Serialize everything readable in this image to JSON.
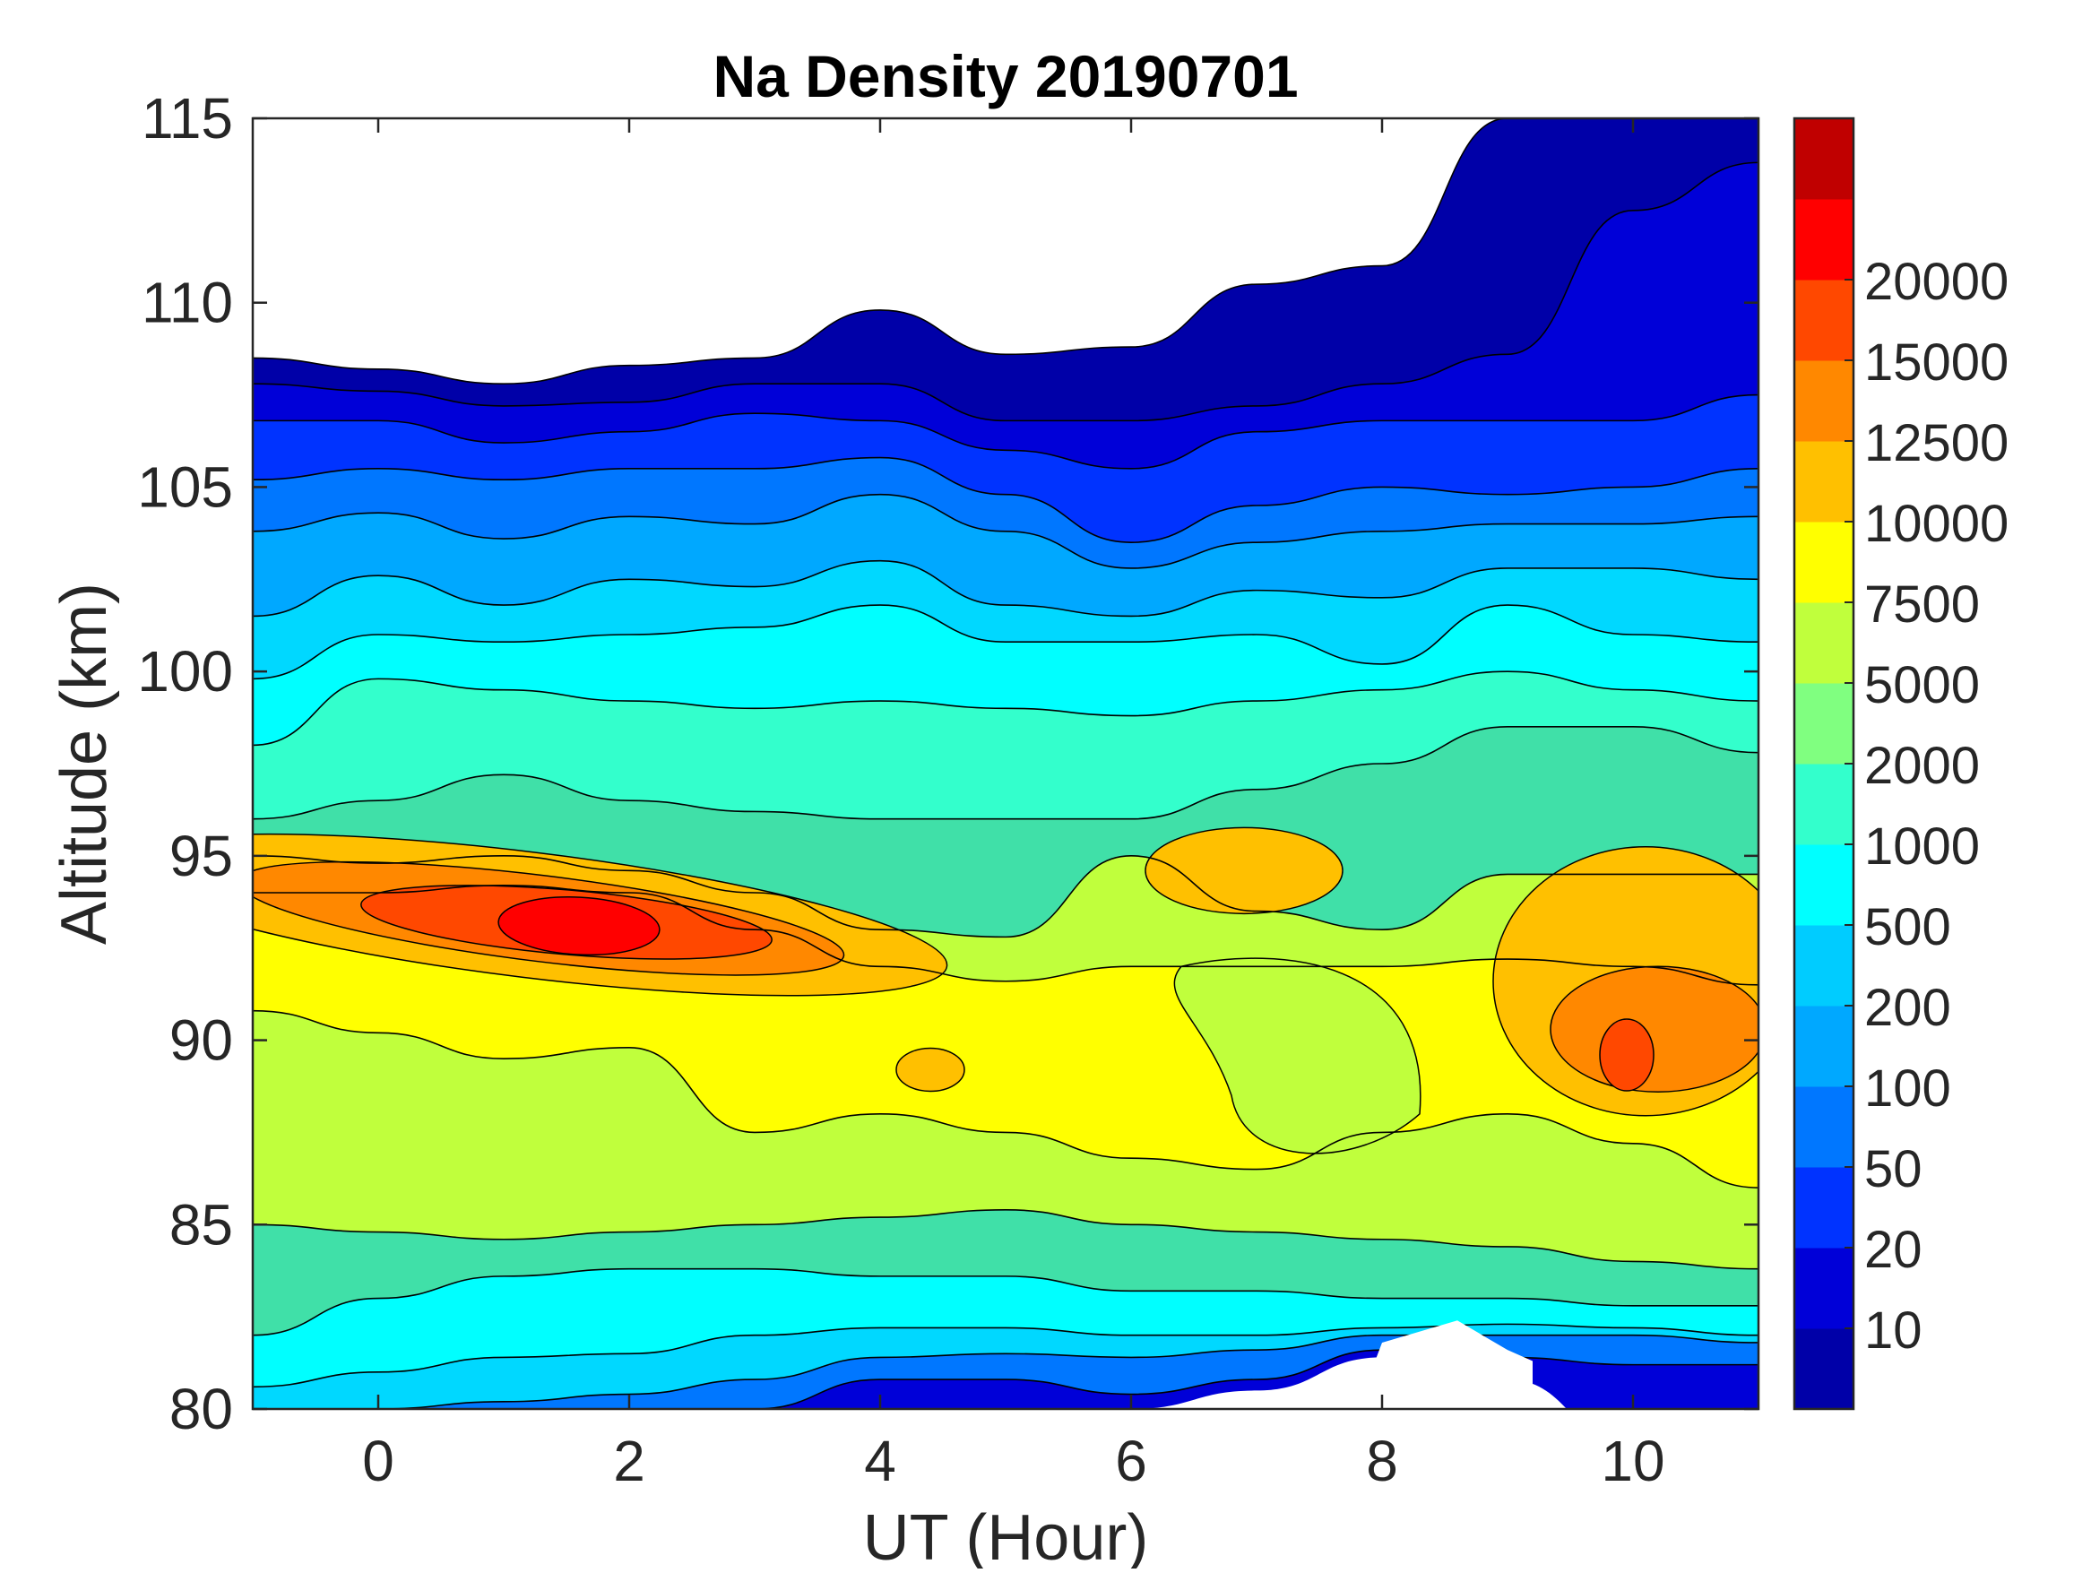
{
  "chart_data": {
    "type": "contour",
    "title": "Na Density 20190701",
    "xlabel": "UT (Hour)",
    "ylabel": "Altitude (km)",
    "xlim": [
      -1,
      11
    ],
    "ylim": [
      80,
      115
    ],
    "xticks": [
      0,
      2,
      4,
      6,
      8,
      10
    ],
    "xtick_labels": [
      "0",
      "2",
      "4",
      "6",
      "8",
      "10"
    ],
    "yticks": [
      80,
      85,
      90,
      95,
      100,
      105,
      110,
      115
    ],
    "ytick_labels": [
      "80",
      "85",
      "90",
      "95",
      "100",
      "105",
      "110",
      "115"
    ],
    "colorbar": {
      "levels": [
        10,
        20,
        50,
        100,
        200,
        500,
        1000,
        2000,
        5000,
        7500,
        10000,
        12500,
        15000,
        20000
      ],
      "labels": [
        "10",
        "20",
        "50",
        "100",
        "200",
        "500",
        "1000",
        "2000",
        "5000",
        "7500",
        "10000",
        "12500",
        "15000",
        "20000"
      ],
      "colors": [
        "#0000A8",
        "#0000D8",
        "#0033FF",
        "#0077FF",
        "#00A8FF",
        "#00CCFF",
        "#00FFFF",
        "#33FFCC",
        "#80FF80",
        "#C0FF3C",
        "#FFFF00",
        "#FFC000",
        "#FF8800",
        "#FF4800",
        "#FF0000",
        "#C00000"
      ]
    },
    "x_hours": [
      -1,
      0,
      1,
      2,
      3,
      4,
      5,
      6,
      7,
      8,
      9,
      10,
      11
    ],
    "contour_boundaries_km": [
      {
        "level": 10,
        "values": [
          108.5,
          108.2,
          107.8,
          108.3,
          108.5,
          109.8,
          108.6,
          108.8,
          110.5,
          111.0,
          115.0,
          115.0,
          115.0
        ]
      },
      {
        "level": 20,
        "values": [
          107.8,
          107.6,
          107.2,
          107.3,
          107.8,
          107.8,
          106.8,
          106.8,
          107.2,
          107.8,
          108.6,
          112.5,
          113.8
        ]
      },
      {
        "level": 50,
        "values": [
          106.8,
          106.8,
          106.2,
          106.5,
          107.0,
          106.8,
          106.0,
          105.5,
          106.5,
          106.8,
          106.8,
          106.8,
          107.5
        ]
      },
      {
        "level": 100,
        "values": [
          105.2,
          105.5,
          105.2,
          105.5,
          105.5,
          105.8,
          104.8,
          103.5,
          104.5,
          105.0,
          104.8,
          105.0,
          105.5
        ]
      },
      {
        "level": 200,
        "values": [
          103.8,
          104.3,
          103.6,
          104.2,
          104.0,
          104.8,
          103.8,
          102.8,
          103.5,
          103.8,
          104.0,
          104.0,
          104.2
        ]
      },
      {
        "level": 500,
        "values": [
          101.5,
          102.6,
          101.8,
          102.5,
          102.3,
          103.0,
          101.8,
          101.5,
          102.2,
          102.0,
          102.8,
          102.8,
          102.5
        ]
      },
      {
        "level": 1000,
        "values": [
          99.8,
          101.0,
          100.8,
          101.0,
          101.2,
          101.8,
          100.8,
          100.8,
          101.0,
          100.2,
          101.8,
          101.0,
          100.8
        ]
      },
      {
        "level": 2000,
        "values": [
          98.0,
          99.8,
          99.5,
          99.2,
          99.0,
          99.2,
          99.0,
          98.8,
          99.2,
          99.5,
          100.0,
          99.5,
          99.2
        ]
      },
      {
        "level": 5000,
        "values": [
          96.0,
          96.5,
          97.2,
          96.5,
          96.2,
          96.0,
          96.0,
          96.0,
          96.8,
          97.5,
          98.5,
          98.5,
          97.8
        ]
      },
      {
        "level": 7500,
        "values": [
          95.0,
          94.8,
          95.0,
          94.6,
          94.0,
          93.0,
          92.8,
          95.0,
          93.5,
          93.0,
          94.5,
          94.5,
          94.5
        ]
      },
      {
        "level": 10000,
        "values": [
          94.0,
          94.0,
          94.2,
          94.0,
          93.0,
          92.0,
          91.6,
          92.0,
          92.0,
          92.0,
          92.2,
          92.0,
          91.5
        ]
      }
    ],
    "notes": [
      "Peak density > 15000 near UT 1.5 h at 93 km",
      "Second maximum ~ 12500-15000 near UT 10 h at 89.5 km",
      "No data (white) near UT 8-9 h below 82 km and above 110 km before UT 8 h"
    ]
  }
}
